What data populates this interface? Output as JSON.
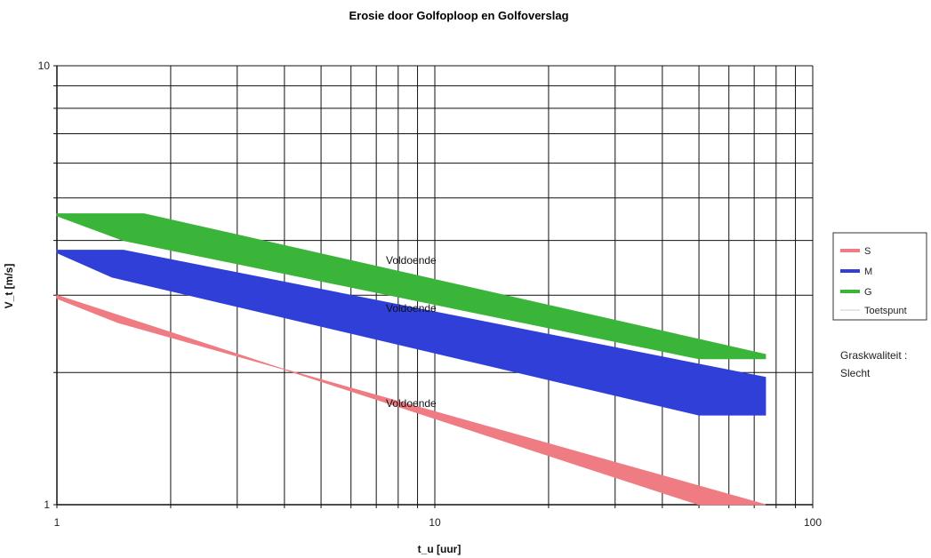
{
  "chart_data": {
    "type": "area",
    "title": "Erosie door Golfoploop en Golfoverslag",
    "xlabel": "t_u [uur]",
    "ylabel": "V_t [m/s]",
    "x_scale": "log",
    "y_scale": "log",
    "xlim": [
      1,
      100
    ],
    "ylim": [
      1,
      10
    ],
    "x_ticks": [
      "1",
      "10",
      "100"
    ],
    "y_ticks": [
      "1",
      "10"
    ],
    "grid": true,
    "legend_position": "right",
    "series": [
      {
        "name": "S",
        "color": "#f07c83",
        "label": "Voldoende",
        "upper": [
          [
            1,
            3.0
          ],
          [
            50,
            1.0
          ]
        ],
        "lower": [
          [
            1,
            2.95
          ],
          [
            1.45,
            2.6
          ],
          [
            75,
            1.0
          ]
        ],
        "label_at": [
          10,
          1.7
        ]
      },
      {
        "name": "M",
        "color": "#2f3fd8",
        "label": "Voldoende",
        "upper": [
          [
            1,
            3.8
          ],
          [
            1.5,
            3.8
          ],
          [
            75,
            1.95
          ]
        ],
        "lower": [
          [
            1,
            3.75
          ],
          [
            1.4,
            3.3
          ],
          [
            50,
            1.6
          ],
          [
            75,
            1.6
          ]
        ],
        "label_at": [
          10,
          2.8
        ]
      },
      {
        "name": "G",
        "color": "#3ab53a",
        "label": "Voldoende",
        "upper": [
          [
            1,
            4.6
          ],
          [
            1.7,
            4.6
          ],
          [
            75,
            2.2
          ]
        ],
        "lower": [
          [
            1,
            4.55
          ],
          [
            1.5,
            4.0
          ],
          [
            50,
            2.15
          ],
          [
            75,
            2.15
          ]
        ],
        "label_at": [
          10,
          3.6
        ]
      }
    ],
    "legend_extra": "Toetspunt",
    "note": [
      "Graskwaliteit :",
      "Slecht"
    ]
  }
}
